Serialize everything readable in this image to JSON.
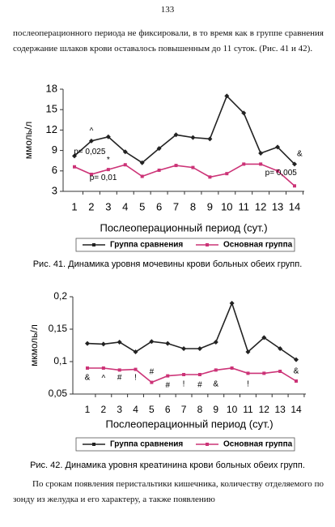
{
  "page_number": "133",
  "paragraph_top": "послеоперационного периода не фиксировали, в то время как в группе сравнения содержание шлаков крови оставалось повышенным до 11 суток. (Рис. 41 и 42).",
  "paragraph_bottom": "По срокам появления перистальтики кишечника, количеству отделяемого по зонду из желудка и его характеру, а также появлению",
  "chart_data": [
    {
      "type": "line",
      "caption": "Рис. 41. Динамика уровня мочевины крови больных обеих групп.",
      "x_label": "Послеоперационный период (сут.)",
      "y_label": "ммоль/л",
      "categories": [
        1,
        2,
        3,
        4,
        5,
        6,
        7,
        8,
        9,
        10,
        11,
        12,
        13,
        14
      ],
      "ylim": [
        3,
        18
      ],
      "yticks": [
        3,
        6,
        9,
        12,
        15,
        18
      ],
      "legend": "bottom",
      "series": [
        {
          "name": "Группа сравнения",
          "color": "#222222",
          "marker": "diamond",
          "values": [
            8.2,
            10.4,
            11,
            8.8,
            7.2,
            9.3,
            11.3,
            10.9,
            10.7,
            17,
            14.5,
            8.6,
            9.5,
            7
          ]
        },
        {
          "name": "Основная группа",
          "color": "#cc3377",
          "marker": "square",
          "values": [
            6.6,
            5.5,
            6.2,
            6.9,
            5.2,
            6.1,
            6.8,
            6.5,
            5.1,
            5.6,
            7,
            7,
            6,
            3.8
          ]
        }
      ],
      "annotations": [
        {
          "text": "p= 0,025",
          "x": 1.9,
          "y": 8.8
        },
        {
          "text": "^",
          "x": 2,
          "y": 11.8
        },
        {
          "text": "*",
          "x": 3,
          "y": 7.6
        },
        {
          "text": "p= 0,01",
          "x": 2.7,
          "y": 5
        },
        {
          "text": "&",
          "x": 14.3,
          "y": 8.5
        },
        {
          "text": "p= 0,005",
          "x": 13.2,
          "y": 5.7
        }
      ]
    },
    {
      "type": "line",
      "caption": "Рис. 42. Динамика уровня креатинина крови больных обеих групп.",
      "x_label": "Послеоперационный период (сут.)",
      "y_label": "мкмоль/л",
      "categories": [
        1,
        2,
        3,
        4,
        5,
        6,
        7,
        8,
        9,
        10,
        11,
        12,
        13,
        14
      ],
      "ylim": [
        0.05,
        0.2
      ],
      "yticks": [
        {
          "value": 0.05,
          "label": "0,05"
        },
        {
          "value": 0.1,
          "label": "0,1"
        },
        {
          "value": 0.15,
          "label": "0,15"
        },
        {
          "value": 0.2,
          "label": "0,2"
        }
      ],
      "legend": "bottom",
      "series": [
        {
          "name": "Группа сравнения",
          "color": "#222222",
          "marker": "diamond",
          "values": [
            0.128,
            0.127,
            0.13,
            0.115,
            0.131,
            0.128,
            0.12,
            0.12,
            0.13,
            0.19,
            0.115,
            0.137,
            0.12,
            0.103
          ]
        },
        {
          "name": "Основная группа",
          "color": "#cc3377",
          "marker": "square",
          "values": [
            0.09,
            0.09,
            0.087,
            0.088,
            0.068,
            0.078,
            0.08,
            0.08,
            0.087,
            0.09,
            0.082,
            0.082,
            0.085,
            0.07
          ]
        }
      ],
      "annotations": [
        {
          "text": "&",
          "x": 1,
          "y": 0.075
        },
        {
          "text": "^",
          "x": 2,
          "y": 0.074
        },
        {
          "text": "#",
          "x": 3,
          "y": 0.075
        },
        {
          "text": "!",
          "x": 4,
          "y": 0.075
        },
        {
          "text": "#",
          "x": 5,
          "y": 0.084
        },
        {
          "text": "#",
          "x": 6,
          "y": 0.063
        },
        {
          "text": "!",
          "x": 7,
          "y": 0.065
        },
        {
          "text": "#",
          "x": 8,
          "y": 0.064
        },
        {
          "text": "&",
          "x": 9,
          "y": 0.065
        },
        {
          "text": "!",
          "x": 11,
          "y": 0.065
        },
        {
          "text": "&",
          "x": 14,
          "y": 0.085
        }
      ]
    }
  ]
}
